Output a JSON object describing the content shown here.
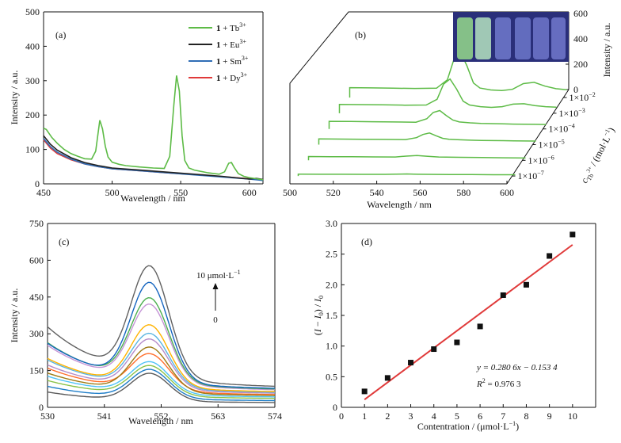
{
  "chart_data": [
    {
      "panel": "(a)",
      "type": "line",
      "xlabel": "Wavelength / nm",
      "ylabel": "Intensity / a.u.",
      "xlim": [
        450,
        610
      ],
      "ylim": [
        0,
        500
      ],
      "xticks": [
        450,
        500,
        550,
        600
      ],
      "yticks": [
        0,
        100,
        200,
        300,
        400,
        500
      ],
      "legend_position": "top-right",
      "series": [
        {
          "name_prefix": "1",
          "name_suffix": " + Tb",
          "sup": "3+",
          "color": "#5dbb46",
          "x": [
            450,
            452,
            456,
            460,
            465,
            470,
            475,
            480,
            485,
            488,
            491,
            493,
            495,
            497,
            500,
            505,
            510,
            520,
            530,
            538,
            542,
            545,
            547,
            549,
            551,
            553,
            556,
            560,
            570,
            578,
            582,
            585,
            587,
            589,
            592,
            596,
            600,
            605,
            610
          ],
          "y": [
            162,
            158,
            135,
            118,
            100,
            88,
            80,
            73,
            72,
            95,
            185,
            160,
            110,
            78,
            63,
            57,
            53,
            49,
            46,
            45,
            80,
            230,
            315,
            270,
            140,
            68,
            46,
            40,
            32,
            28,
            35,
            60,
            62,
            48,
            30,
            22,
            18,
            15,
            12
          ]
        },
        {
          "name_prefix": "1",
          "name_suffix": " + Eu",
          "sup": "3+",
          "color": "#222222",
          "x": [
            450,
            455,
            460,
            470,
            480,
            490,
            500,
            520,
            540,
            560,
            580,
            600,
            605,
            610
          ],
          "y": [
            140,
            115,
            98,
            76,
            62,
            53,
            46,
            40,
            34,
            28,
            22,
            14,
            16,
            13
          ]
        },
        {
          "name_prefix": "1",
          "name_suffix": " + Sm",
          "sup": "3+",
          "color": "#2f6db5",
          "x": [
            450,
            455,
            460,
            470,
            480,
            490,
            500,
            520,
            540,
            560,
            580,
            600,
            610
          ],
          "y": [
            132,
            108,
            92,
            72,
            58,
            50,
            44,
            38,
            32,
            26,
            20,
            14,
            10
          ]
        },
        {
          "name_prefix": "1",
          "name_suffix": " + Dy",
          "sup": "3+",
          "color": "#e03a3a",
          "x": [
            450,
            455,
            460,
            470,
            480,
            490,
            500,
            520,
            540,
            560,
            580,
            600,
            610
          ],
          "y": [
            128,
            104,
            88,
            70,
            58,
            50,
            44,
            38,
            32,
            27,
            21,
            15,
            12
          ]
        }
      ]
    },
    {
      "panel": "(b)",
      "type": "line",
      "xlabel": "Wavelength / nm",
      "zlabel": "Intensity / a.u.",
      "ylabel_main": "c",
      "ylabel_sub": "Tb",
      "ylabel_subsup": "3+",
      "ylabel_rest": " / (mol·L",
      "ylabel_sup": "−1",
      "ylabel_close": ")",
      "xlim": [
        500,
        600
      ],
      "zlim": [
        0,
        600
      ],
      "xticks": [
        500,
        520,
        540,
        560,
        580,
        600
      ],
      "zticks": [
        0,
        200,
        400,
        600
      ],
      "depth_labels": [
        {
          "base": "1×10",
          "sup": "−7"
        },
        {
          "base": "1×10",
          "sup": "−6"
        },
        {
          "base": "1×10",
          "sup": "−5"
        },
        {
          "base": "1×10",
          "sup": "−4"
        },
        {
          "base": "1×10",
          "sup": "−3"
        },
        {
          "base": "1×10",
          "sup": "−2"
        }
      ],
      "series_color": "#5dbb46",
      "series": [
        {
          "x": [
            500,
            510,
            520,
            530,
            540,
            545,
            550,
            555,
            560,
            570,
            580,
            590,
            600
          ],
          "y": [
            15,
            14,
            14,
            13,
            13,
            15,
            16,
            14,
            13,
            12,
            11,
            10,
            10
          ]
        },
        {
          "x": [
            500,
            510,
            520,
            530,
            540,
            545,
            550,
            555,
            560,
            570,
            580,
            590,
            600
          ],
          "y": [
            30,
            29,
            28,
            27,
            26,
            33,
            38,
            32,
            26,
            24,
            22,
            20,
            18
          ]
        },
        {
          "x": [
            500,
            510,
            520,
            530,
            540,
            545,
            548,
            551,
            554,
            557,
            560,
            565,
            570,
            575,
            580,
            585,
            590,
            595,
            600
          ],
          "y": [
            45,
            44,
            42,
            41,
            40,
            55,
            80,
            92,
            70,
            50,
            42,
            38,
            35,
            33,
            32,
            31,
            30,
            29,
            28
          ]
        },
        {
          "x": [
            500,
            510,
            520,
            530,
            540,
            545,
            548,
            551,
            554,
            557,
            560,
            565,
            570,
            575,
            580,
            585,
            590,
            595,
            600
          ],
          "y": [
            60,
            59,
            57,
            55,
            53,
            80,
            130,
            145,
            105,
            70,
            55,
            48,
            44,
            42,
            40,
            38,
            37,
            36,
            35
          ]
        },
        {
          "x": [
            500,
            510,
            520,
            530,
            540,
            545,
            548,
            551,
            554,
            557,
            560,
            565,
            570,
            575,
            580,
            585,
            590,
            595,
            600
          ],
          "y": [
            70,
            68,
            66,
            64,
            65,
            110,
            230,
            270,
            190,
            95,
            65,
            52,
            46,
            52,
            72,
            75,
            60,
            52,
            48
          ]
        },
        {
          "x": [
            500,
            510,
            520,
            530,
            540,
            545,
            548,
            551,
            554,
            557,
            560,
            565,
            570,
            575,
            580,
            585,
            590,
            595,
            600
          ],
          "y": [
            78,
            76,
            74,
            72,
            74,
            140,
            300,
            360,
            250,
            115,
            75,
            60,
            55,
            65,
            110,
            120,
            90,
            70,
            62
          ]
        }
      ]
    },
    {
      "panel": "(c)",
      "type": "line",
      "xlabel": "Wavelength / nm",
      "ylabel": "Intensity / a.u.",
      "xlim": [
        530,
        574
      ],
      "ylim": [
        0,
        750
      ],
      "xticks": [
        530,
        541,
        552,
        563,
        574
      ],
      "yticks": [
        0,
        150,
        300,
        450,
        600,
        750
      ],
      "arrow_top": {
        "value": "10",
        "unit_prefix": " μmol·L",
        "unit_sup": "−1"
      },
      "arrow_bottom": "0",
      "curve_params": [
        {
          "color": "#5a5a5a",
          "base": 55,
          "peak": 135,
          "tail": 32
        },
        {
          "color": "#1f7ec8",
          "base": 75,
          "peak": 150,
          "tail": 45
        },
        {
          "color": "#8bc34a",
          "base": 95,
          "peak": 165,
          "tail": 60
        },
        {
          "color": "#4fc3f7",
          "base": 110,
          "peak": 180,
          "tail": 70
        },
        {
          "color": "#ff6f2c",
          "base": 140,
          "peak": 210,
          "tail": 85
        },
        {
          "color": "#9e7b15",
          "base": 120,
          "peak": 240,
          "tail": 80
        },
        {
          "color": "#b58cc9",
          "base": 150,
          "peak": 270,
          "tail": 95
        },
        {
          "color": "#5bb5e0",
          "base": 170,
          "peak": 290,
          "tail": 100
        },
        {
          "color": "#ffb300",
          "base": 175,
          "peak": 325,
          "tail": 105
        },
        {
          "color": "#c594d6",
          "base": 230,
          "peak": 400,
          "tail": 115
        },
        {
          "color": "#4caf50",
          "base": 240,
          "peak": 425,
          "tail": 120
        },
        {
          "color": "#1565c0",
          "base": 235,
          "peak": 490,
          "tail": 125
        },
        {
          "color": "#616161",
          "base": 305,
          "peak": 545,
          "tail": 135
        }
      ]
    },
    {
      "panel": "(d)",
      "type": "scatter",
      "xlabel": "Contentration / (μmol·L",
      "xlabel_sup": "−1",
      "xlabel_close": ")",
      "ylabel": "(I − I0) / I0",
      "xlim": [
        0,
        11
      ],
      "ylim": [
        0,
        3.0
      ],
      "xticks": [
        0,
        1,
        2,
        3,
        4,
        5,
        6,
        7,
        8,
        9,
        10
      ],
      "yticks": [
        0,
        0.5,
        1.0,
        1.5,
        2.0,
        2.5,
        3.0
      ],
      "ytick_labels": [
        "0",
        "0.5",
        "1.0",
        "1.5",
        "2.0",
        "2.5",
        "3.0"
      ],
      "points": {
        "x": [
          1,
          2,
          3,
          4,
          5,
          6,
          7,
          8,
          9,
          10
        ],
        "y": [
          0.26,
          0.48,
          0.73,
          0.95,
          1.06,
          1.32,
          1.83,
          2.0,
          2.47,
          2.82
        ]
      },
      "fit": {
        "slope": 0.2806,
        "intercept": -0.1534,
        "x_range": [
          1,
          10
        ],
        "color": "#e03a3a"
      },
      "equation": "y = 0.280 6x − 0.153 4",
      "r2_label": "R",
      "r2_value": " = 0.976 3"
    }
  ]
}
